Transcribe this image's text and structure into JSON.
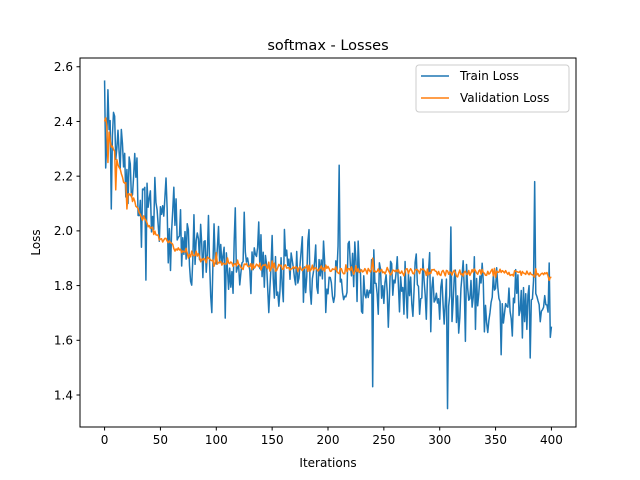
{
  "chart_data": {
    "type": "line",
    "title": "softmax - Losses",
    "xlabel": "Iterations",
    "ylabel": "Loss",
    "xlim": [
      -22,
      422
    ],
    "ylim": [
      1.283,
      2.632
    ],
    "xticks": [
      0,
      50,
      100,
      150,
      200,
      250,
      300,
      350,
      400
    ],
    "yticks": [
      1.4,
      1.6,
      1.8,
      2.0,
      2.2,
      2.4,
      2.6
    ],
    "ytick_labels": [
      "1.4",
      "1.6",
      "1.8",
      "2.0",
      "2.2",
      "2.4",
      "2.6"
    ],
    "legend_position": "upper right",
    "grid": false,
    "series": [
      {
        "name": "Train Loss",
        "color": "#1f77b4",
        "generated": true,
        "n_points": 401,
        "trend": {
          "start": 2.4,
          "end": 1.83,
          "decay": 35,
          "tail_slope": -0.00045
        },
        "noise_amplitude": 0.12,
        "anchors": [
          [
            0,
            2.55
          ],
          [
            1,
            2.23
          ],
          [
            4,
            2.37
          ],
          [
            6,
            2.08
          ],
          [
            22,
            2.27
          ],
          [
            37,
            1.82
          ],
          [
            104,
            1.95
          ],
          [
            210,
            2.24
          ],
          [
            240,
            1.43
          ],
          [
            307,
            1.35
          ],
          [
            385,
            2.18
          ],
          [
            400,
            1.65
          ]
        ]
      },
      {
        "name": "Validation Loss",
        "color": "#ff7f0e",
        "generated": true,
        "n_points": 401,
        "trend": {
          "start": 2.4,
          "end": 1.86,
          "decay": 30,
          "tail_slope": -0.0001
        },
        "noise_amplitude": 0.012,
        "anchors": [
          [
            0,
            2.4
          ],
          [
            3,
            2.25
          ],
          [
            10,
            2.15
          ],
          [
            20,
            2.08
          ],
          [
            50,
            1.97
          ],
          [
            100,
            1.92
          ],
          [
            150,
            1.89
          ],
          [
            200,
            1.87
          ],
          [
            240,
            1.9
          ],
          [
            250,
            1.85
          ],
          [
            300,
            1.84
          ],
          [
            350,
            1.83
          ],
          [
            400,
            1.83
          ]
        ]
      }
    ]
  }
}
